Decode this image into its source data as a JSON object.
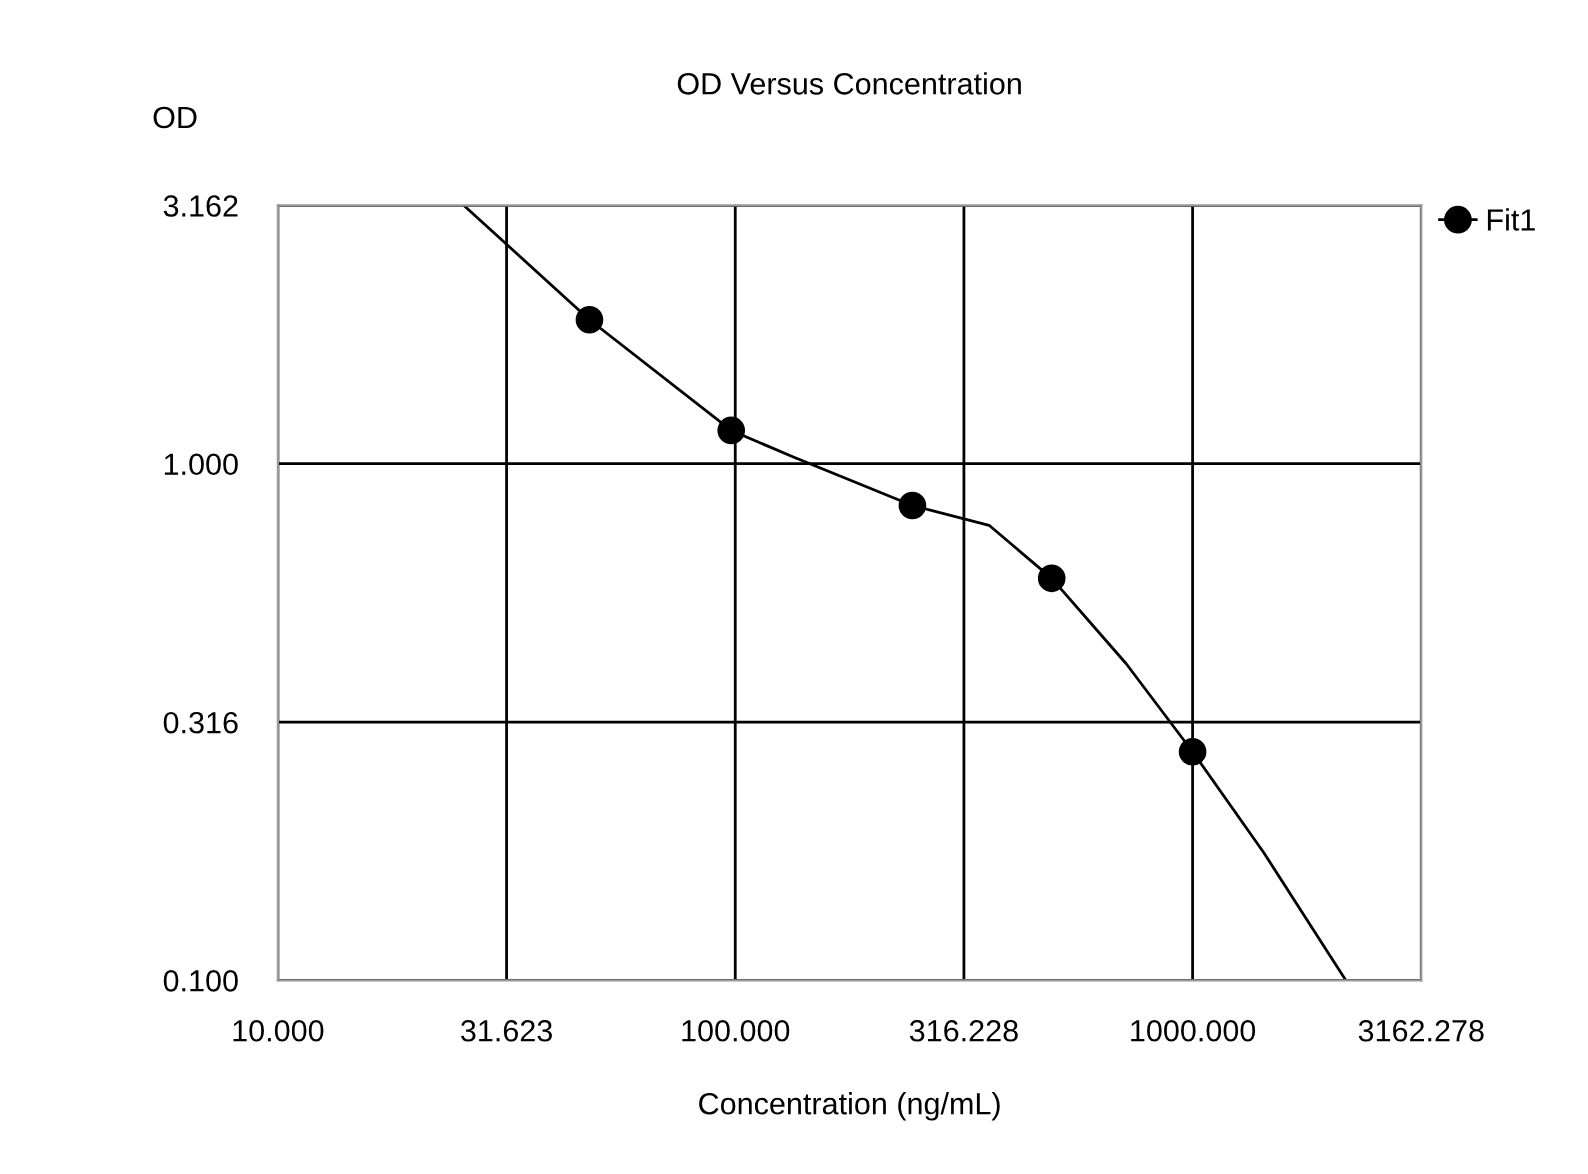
{
  "chart_data": {
    "type": "scatter",
    "title": "OD Versus Concentration",
    "xlabel": "Concentration (ng/mL)",
    "ylabel": "OD",
    "log": "xy",
    "grid": true,
    "legend": "top right",
    "marker": "circle",
    "xlim": [
      10,
      3162.278
    ],
    "ylim": [
      0.1,
      3.162
    ],
    "xticks": [
      {
        "value": 10,
        "label": "10.000"
      },
      31.623,
      {
        "value": 100,
        "label": "100.000"
      },
      316.228,
      {
        "value": 1000,
        "label": "1000.000"
      },
      3162.278
    ],
    "yticks": [
      {
        "value": 0.1,
        "label": "0.100"
      },
      0.316,
      {
        "value": 1,
        "label": "1.000"
      },
      3.162
    ],
    "series": [
      {
        "name": "Fit1",
        "color": "#000000",
        "x": [
          48,
          98,
          244,
          492,
          1000
        ],
        "values": [
          1.9,
          1.16,
          0.83,
          0.6,
          0.277
        ]
      },
      {
        "type": "line",
        "color": "#000000",
        "marker": "none",
        "x": [
          25.5,
          48,
          98,
          134,
          244,
          359,
          492,
          716,
          1000,
          1429,
          2163
        ],
        "values": [
          3.162,
          1.9,
          1.16,
          1.03,
          0.83,
          0.76,
          0.6,
          0.41,
          0.277,
          0.177,
          0.1
        ]
      }
    ]
  }
}
